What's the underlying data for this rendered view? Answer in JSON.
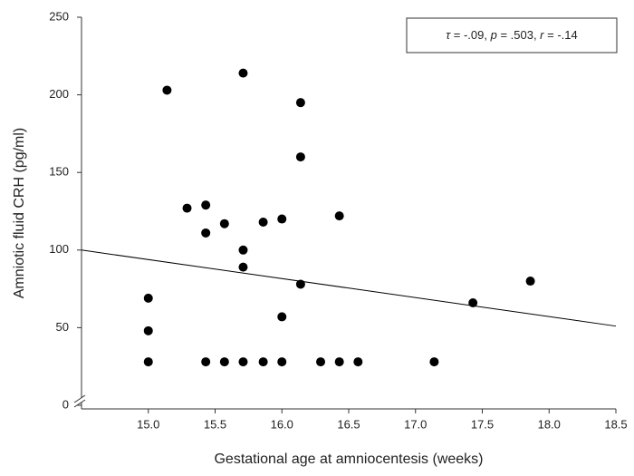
{
  "chart_data": {
    "type": "scatter",
    "x_label": "Gestational age at amniocentesis (weeks)",
    "y_label": "Amniotic fluid CRH (pg/ml)",
    "annotation": [
      "τ",
      " = -.09, ",
      "p",
      " = .503, ",
      "r",
      " = -.14"
    ],
    "xlim": [
      14.5,
      18.5
    ],
    "ylim": [
      0,
      250
    ],
    "xticks": [
      {
        "value": 15,
        "label": "15.0"
      },
      {
        "value": 15.5,
        "label": "15.5"
      },
      {
        "value": 16,
        "label": "16.0"
      },
      {
        "value": 16.5,
        "label": "16.5"
      },
      {
        "value": 17,
        "label": "17.0"
      },
      {
        "value": 17.5,
        "label": "17.5"
      },
      {
        "value": 18,
        "label": "18.0"
      },
      {
        "value": 18.5,
        "label": "18.5"
      }
    ],
    "yticks": [
      0,
      50,
      100,
      150,
      200,
      250
    ],
    "color": "#000000",
    "x": [
      15.0,
      15.0,
      15.0,
      15.14,
      15.29,
      15.43,
      15.43,
      15.43,
      15.57,
      15.57,
      15.71,
      15.71,
      15.71,
      15.71,
      15.86,
      15.86,
      16.0,
      16.0,
      16.0,
      16.14,
      16.14,
      16.14,
      16.29,
      16.43,
      16.43,
      16.57,
      17.14,
      17.43,
      17.86
    ],
    "values": [
      28,
      48,
      69,
      203,
      127,
      129,
      111,
      28,
      117,
      28,
      214,
      100,
      89,
      28,
      118,
      28,
      120,
      57,
      28,
      195,
      160,
      78,
      28,
      122,
      28,
      28,
      28,
      66,
      80
    ],
    "fit_line": {
      "x": [
        14.5,
        18.5
      ],
      "y": [
        100,
        51
      ]
    }
  }
}
